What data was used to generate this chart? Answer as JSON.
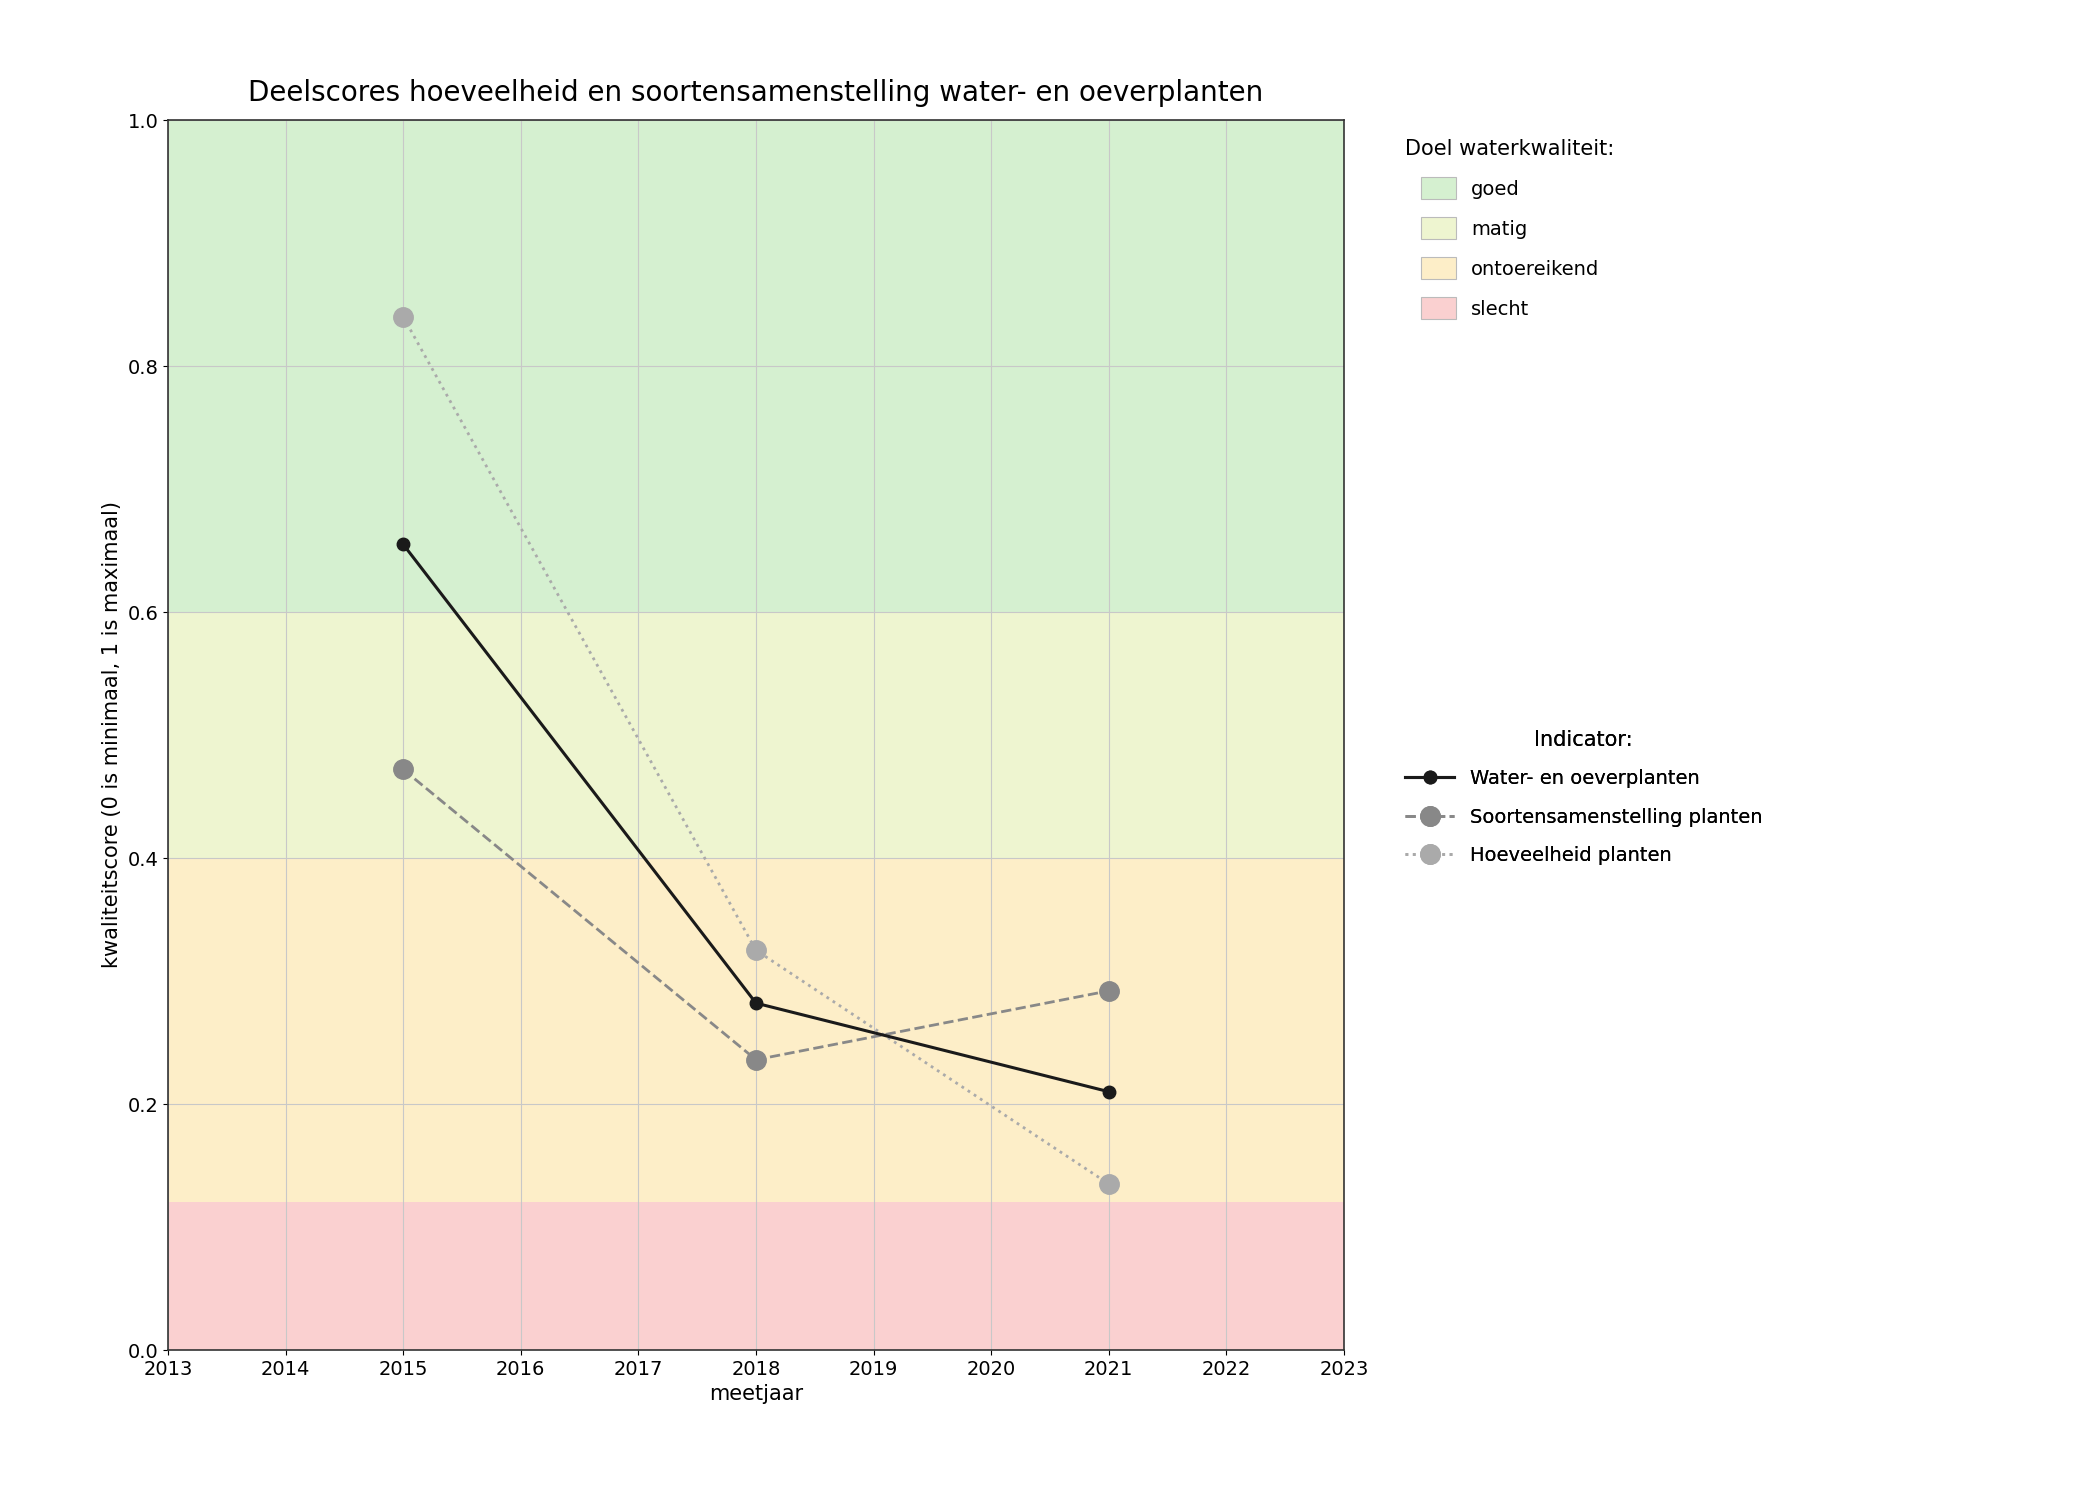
{
  "title": "Deelscores hoeveelheid en soortensamenstelling water- en oeverplanten",
  "xlabel": "meetjaar",
  "ylabel": "kwaliteitscore (0 is minimaal, 1 is maximaal)",
  "xlim": [
    2013,
    2023
  ],
  "ylim": [
    0.0,
    1.0
  ],
  "xticks": [
    2013,
    2014,
    2015,
    2016,
    2017,
    2018,
    2019,
    2020,
    2021,
    2022,
    2023
  ],
  "yticks": [
    0.0,
    0.2,
    0.4,
    0.6,
    0.8,
    1.0
  ],
  "background_color": "#ffffff",
  "zones": [
    {
      "label": "goed",
      "ymin": 0.6,
      "ymax": 1.0,
      "color": "#d5f0d0"
    },
    {
      "label": "matig",
      "ymin": 0.4,
      "ymax": 0.6,
      "color": "#eef5d0"
    },
    {
      "label": "ontoereikend",
      "ymin": 0.12,
      "ymax": 0.4,
      "color": "#fdeec8"
    },
    {
      "label": "slecht",
      "ymin": 0.0,
      "ymax": 0.12,
      "color": "#fad0d0"
    }
  ],
  "lines": [
    {
      "label": "Water- en oeverplanten",
      "years": [
        2015,
        2018,
        2021
      ],
      "values": [
        0.655,
        0.282,
        0.21
      ],
      "color": "#1a1a1a",
      "linestyle": "solid",
      "linewidth": 2.2,
      "marker": "o",
      "markersize": 9,
      "markerfacecolor": "#1a1a1a",
      "markeredgecolor": "#1a1a1a",
      "zorder": 5
    },
    {
      "label": "Soortensamenstelling planten",
      "years": [
        2015,
        2018,
        2021
      ],
      "values": [
        0.472,
        0.236,
        0.292
      ],
      "color": "#888888",
      "linestyle": "dashed",
      "linewidth": 2.0,
      "marker": "o",
      "markersize": 14,
      "markerfacecolor": "#888888",
      "markeredgecolor": "#888888",
      "zorder": 4
    },
    {
      "label": "Hoeveelheid planten",
      "years": [
        2015,
        2018,
        2021
      ],
      "values": [
        0.84,
        0.325,
        0.135
      ],
      "color": "#aaaaaa",
      "linestyle": "dotted",
      "linewidth": 2.0,
      "marker": "o",
      "markersize": 14,
      "markerfacecolor": "#aaaaaa",
      "markeredgecolor": "#aaaaaa",
      "zorder": 4
    }
  ],
  "legend_title_quality": "Doel waterkwaliteit:",
  "legend_title_indicator": "Indicator:",
  "grid_color": "#c8c8c8",
  "title_fontsize": 20,
  "label_fontsize": 15,
  "tick_fontsize": 14,
  "legend_fontsize": 14
}
